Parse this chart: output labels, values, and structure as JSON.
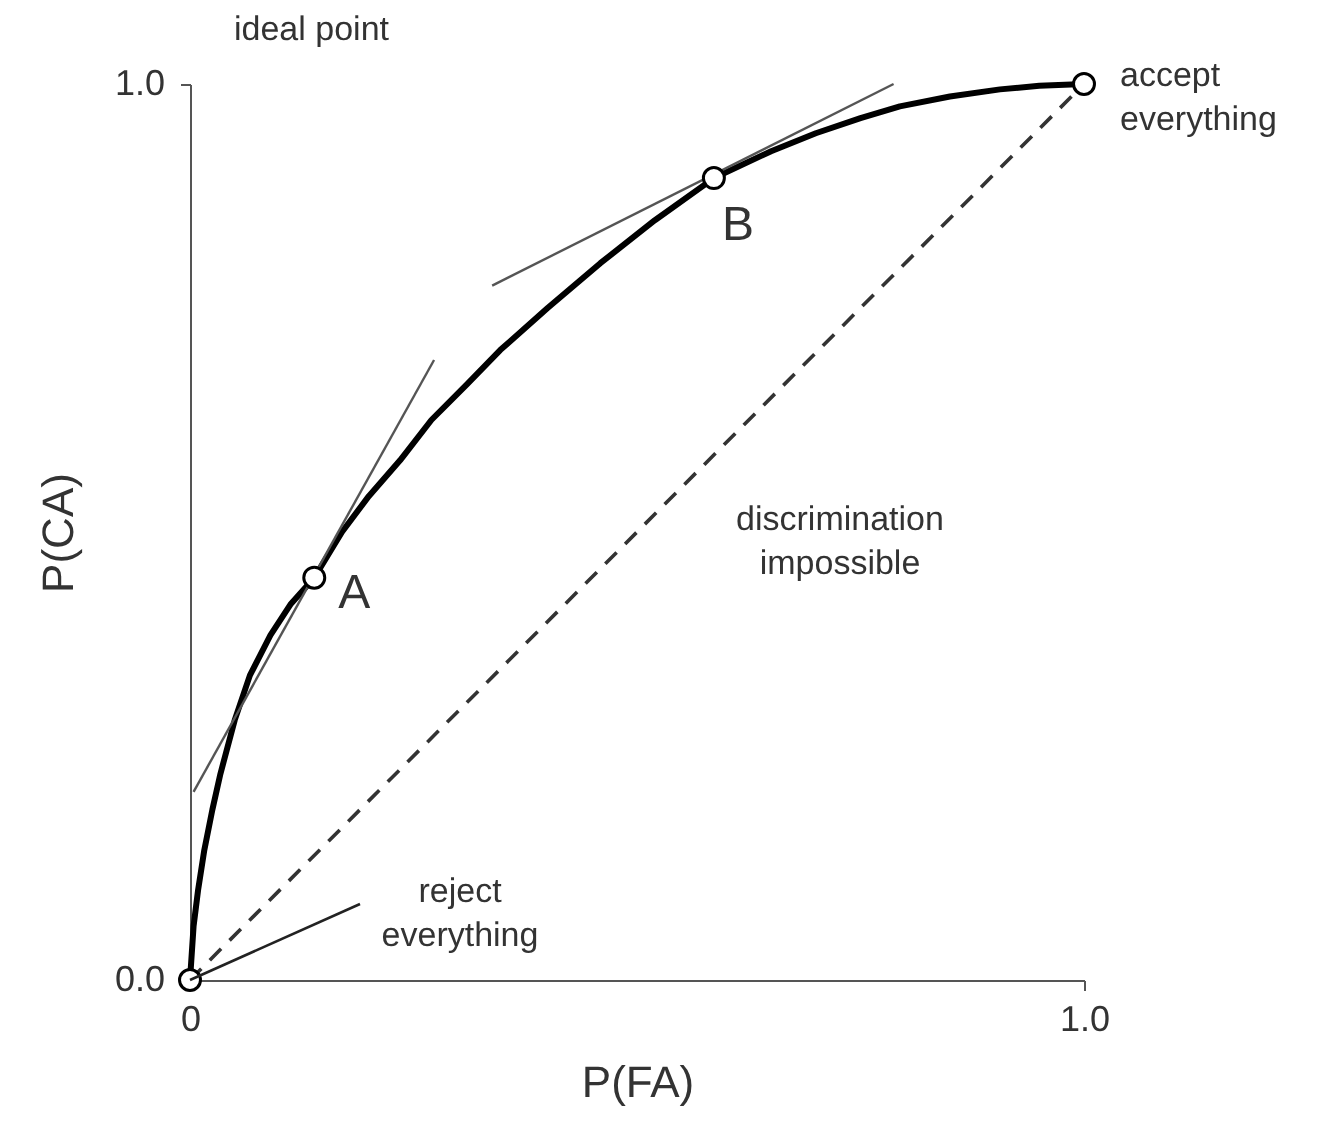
{
  "chart_data": {
    "type": "line",
    "xlabel": "P(FA)",
    "ylabel": "P(CA)",
    "xlim": [
      0,
      1
    ],
    "ylim": [
      0,
      1
    ],
    "xticks": [
      0,
      {
        "value": 1,
        "label": "1.0"
      }
    ],
    "yticks": [
      {
        "value": 0,
        "label": "0.0"
      },
      {
        "value": 1,
        "label": "1.0"
      }
    ],
    "grid": false,
    "series": [
      {
        "color": "#000000",
        "line_style": "solid",
        "x": [
          0,
          0.004,
          0.009,
          0.016,
          0.025,
          0.034,
          0.05,
          0.067,
          0.09,
          0.113,
          0.139,
          0.17,
          0.2,
          0.235,
          0.27,
          0.31,
          0.347,
          0.4,
          0.459,
          0.52,
          0.586,
          0.65,
          0.7,
          0.75,
          0.794,
          0.85,
          0.906,
          0.95,
          1
        ],
        "values": [
          0,
          0.06,
          0.1,
          0.145,
          0.19,
          0.23,
          0.29,
          0.34,
          0.385,
          0.42,
          0.449,
          0.5,
          0.54,
          0.58,
          0.625,
          0.665,
          0.703,
          0.75,
          0.8,
          0.848,
          0.895,
          0.925,
          0.945,
          0.962,
          0.975,
          0.986,
          0.994,
          0.998,
          1
        ]
      },
      {
        "color": "#555555",
        "line_style": "solid",
        "x": [
          0.004,
          0.273
        ],
        "values": [
          0.21,
          0.692
        ]
      },
      {
        "color": "#555555",
        "line_style": "solid",
        "x": [
          0.338,
          0.787
        ],
        "values": [
          0.775,
          1.0
        ]
      },
      {
        "color": "#333333",
        "line_style": "dashed",
        "x": [
          0,
          1
        ],
        "values": [
          0,
          1
        ]
      },
      {
        "type": "scatter",
        "color": "#000000",
        "marker": "circle",
        "x": [
          0,
          0.139,
          0.586,
          1
        ],
        "values": [
          0,
          0.449,
          0.895,
          1
        ]
      }
    ],
    "annotations": [
      "ideal point",
      {
        "text": "accept everything",
        "x": 1,
        "y": 1
      },
      {
        "text": "A",
        "x": 0.139,
        "y": 0.449
      },
      {
        "text": "B",
        "x": 0.586,
        "y": 0.895
      },
      "discrimination impossible",
      {
        "text": "reject everything",
        "x": 0,
        "y": 0
      }
    ]
  }
}
